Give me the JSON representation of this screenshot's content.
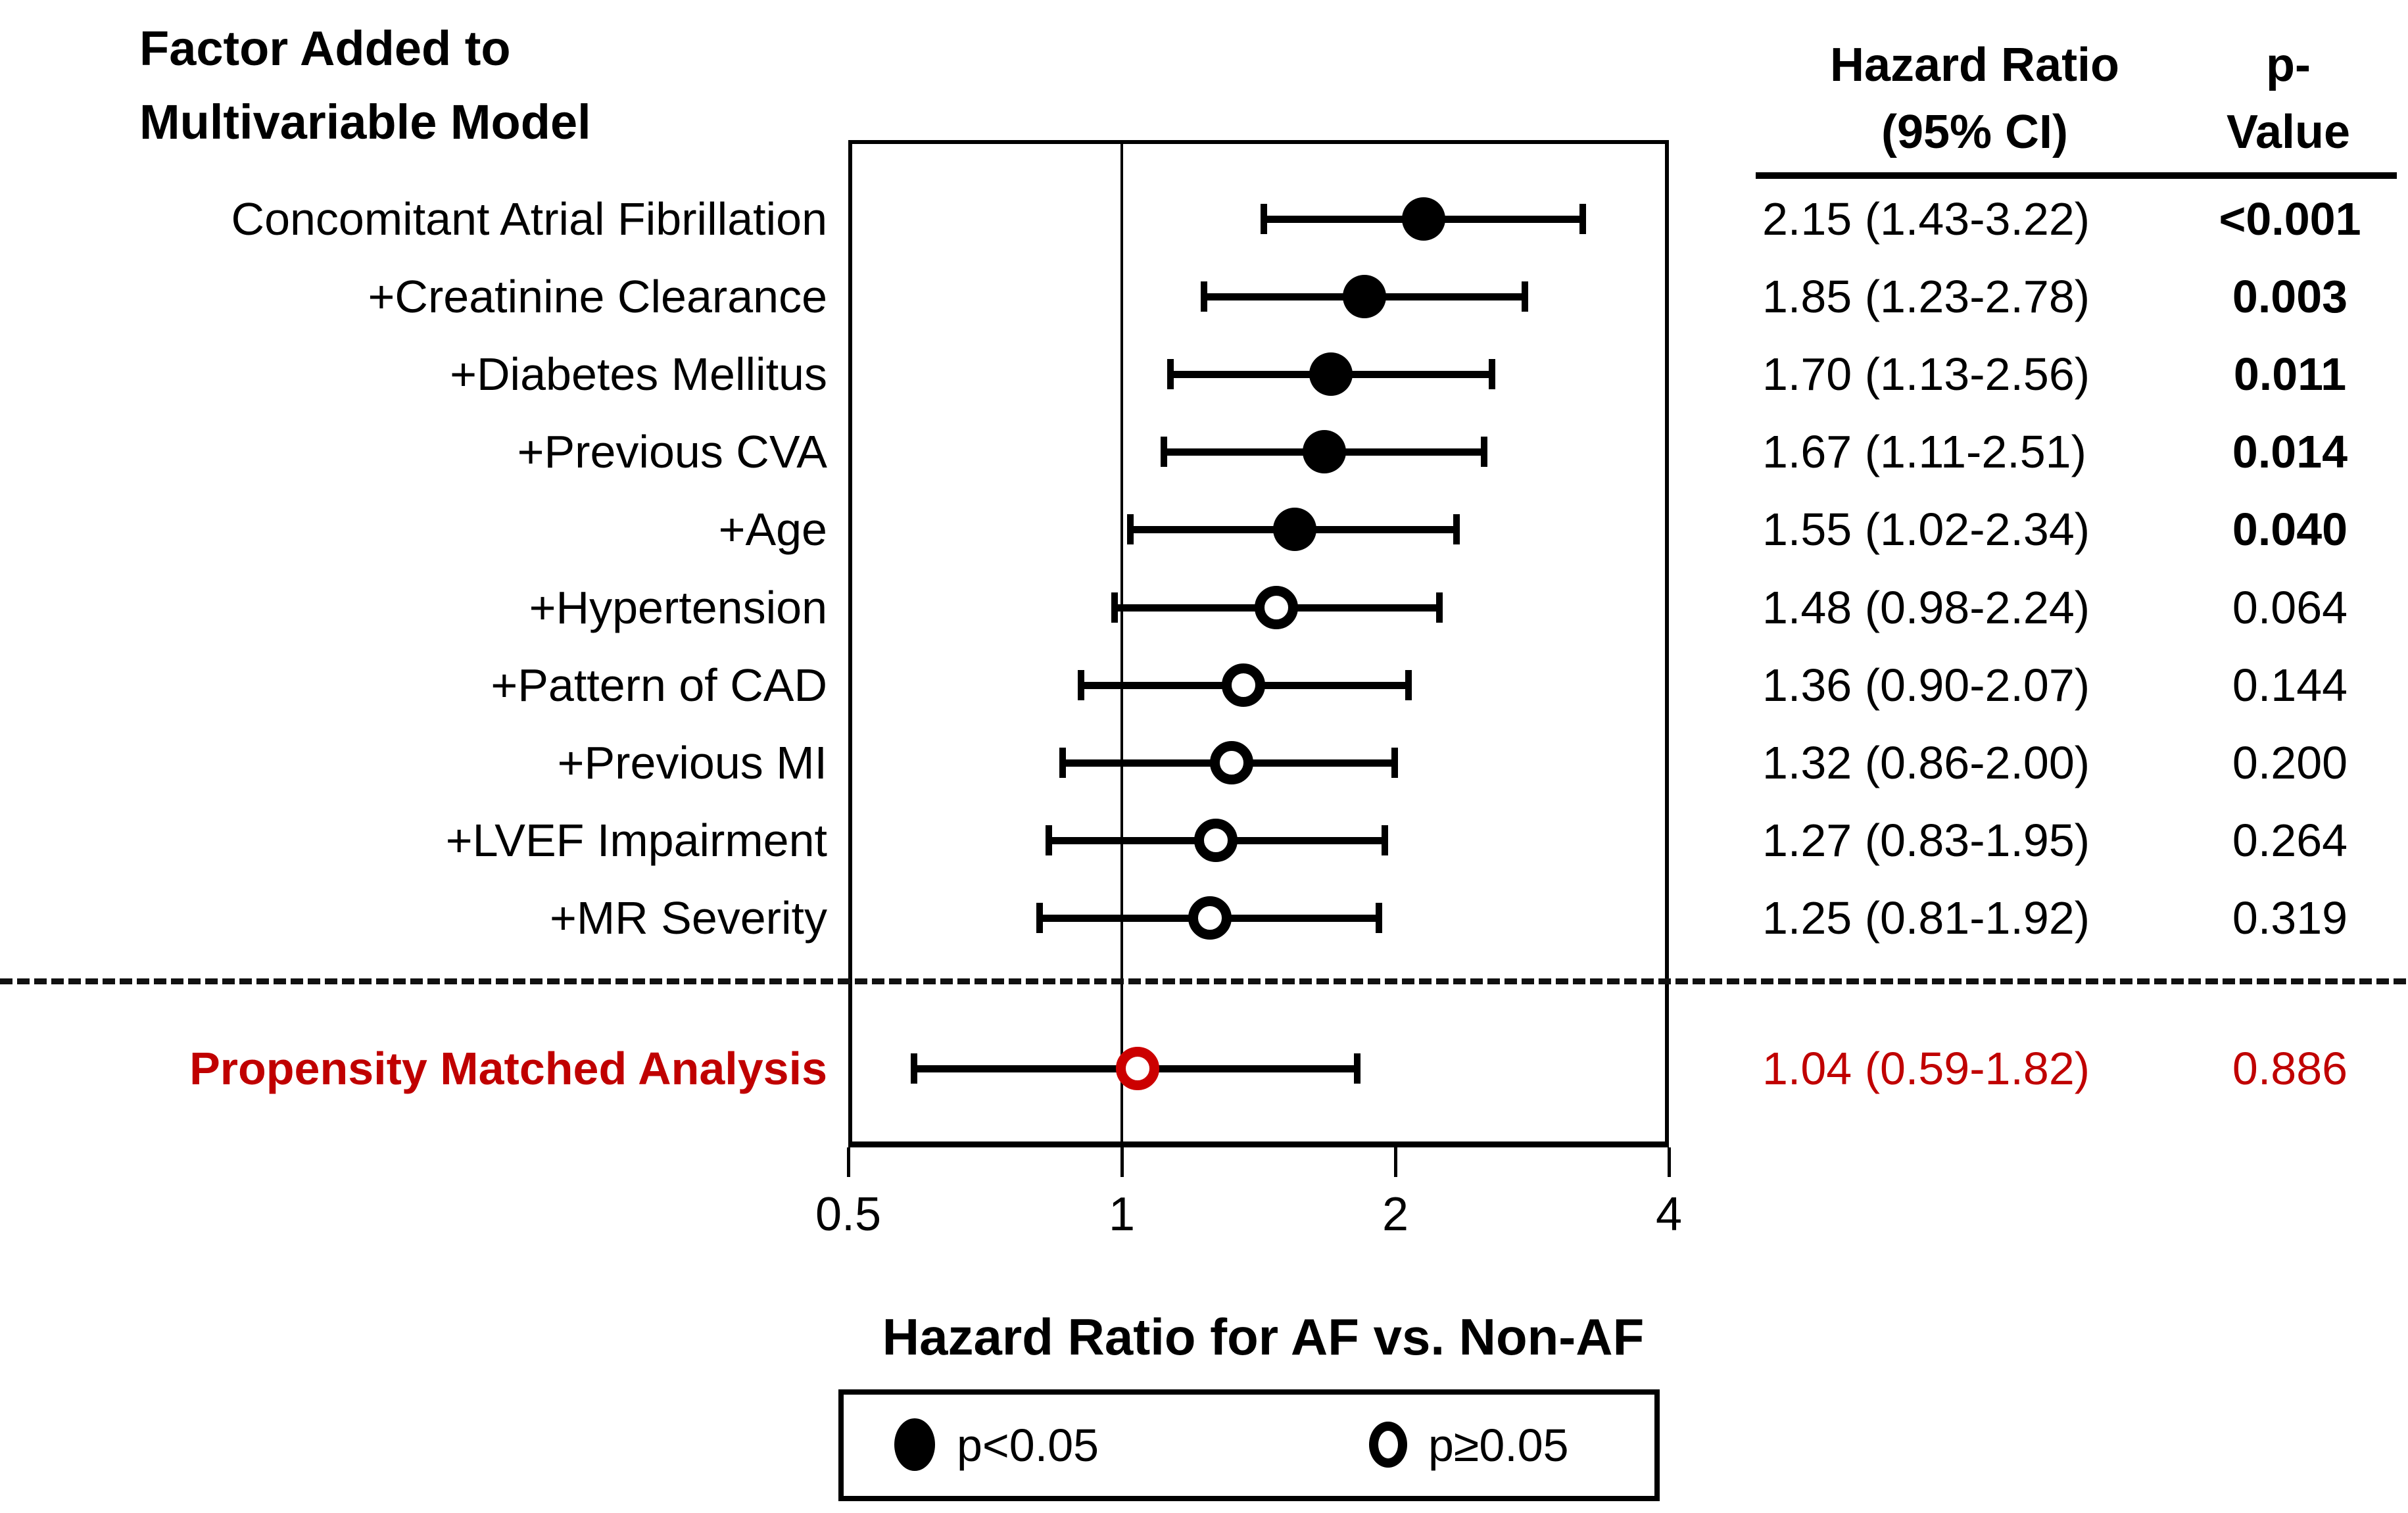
{
  "figure": {
    "row_column_header_line1": "Factor Added to",
    "row_column_header_line2": "Multivariable Model"
  },
  "chart_data": {
    "type": "forest",
    "title": "Factor Added to Multivariable Model",
    "xlabel": "Hazard Ratio for AF vs. Non-AF",
    "x_scale": "log2",
    "x_ticks": [
      0.5,
      1,
      2,
      4
    ],
    "x_tick_labels": [
      "0.5",
      "1",
      "2",
      "4"
    ],
    "xlim": [
      0.5,
      4
    ],
    "reference_line": 1,
    "headers": {
      "hazard_line1": "Hazard Ratio",
      "hazard_line2": "(95% CI)",
      "p_line1": "p-",
      "p_line2": "Value"
    },
    "legend": {
      "filled_label": "p<0.05",
      "open_label": "p≥0.05"
    },
    "colors": {
      "black": "#000000",
      "red_text": "#C00000",
      "red_marker": "#CC0000"
    },
    "rows": [
      {
        "label": "Concomitant Atrial Fibrillation",
        "hr": 2.15,
        "lo": 1.43,
        "hi": 3.22,
        "hr_ci": "2.15 (1.43-3.22)",
        "p": "<0.001",
        "significant": true,
        "red": false
      },
      {
        "label": "+Creatinine Clearance",
        "hr": 1.85,
        "lo": 1.23,
        "hi": 2.78,
        "hr_ci": "1.85 (1.23-2.78)",
        "p": "0.003",
        "significant": true,
        "red": false
      },
      {
        "label": "+Diabetes Mellitus",
        "hr": 1.7,
        "lo": 1.13,
        "hi": 2.56,
        "hr_ci": "1.70 (1.13-2.56)",
        "p": "0.011",
        "significant": true,
        "red": false
      },
      {
        "label": "+Previous CVA",
        "hr": 1.67,
        "lo": 1.11,
        "hi": 2.51,
        "hr_ci": "1.67 (1.11-2.51)",
        "p": "0.014",
        "significant": true,
        "red": false
      },
      {
        "label": "+Age",
        "hr": 1.55,
        "lo": 1.02,
        "hi": 2.34,
        "hr_ci": "1.55 (1.02-2.34)",
        "p": "0.040",
        "significant": true,
        "red": false
      },
      {
        "label": "+Hypertension",
        "hr": 1.48,
        "lo": 0.98,
        "hi": 2.24,
        "hr_ci": "1.48 (0.98-2.24)",
        "p": "0.064",
        "significant": false,
        "red": false
      },
      {
        "label": "+Pattern of CAD",
        "hr": 1.36,
        "lo": 0.9,
        "hi": 2.07,
        "hr_ci": "1.36 (0.90-2.07)",
        "p": "0.144",
        "significant": false,
        "red": false
      },
      {
        "label": "+Previous MI",
        "hr": 1.32,
        "lo": 0.86,
        "hi": 2.0,
        "hr_ci": "1.32 (0.86-2.00)",
        "p": "0.200",
        "significant": false,
        "red": false
      },
      {
        "label": "+LVEF Impairment",
        "hr": 1.27,
        "lo": 0.83,
        "hi": 1.95,
        "hr_ci": "1.27 (0.83-1.95)",
        "p": "0.264",
        "significant": false,
        "red": false
      },
      {
        "label": "+MR Severity",
        "hr": 1.25,
        "lo": 0.81,
        "hi": 1.92,
        "hr_ci": "1.25 (0.81-1.92)",
        "p": "0.319",
        "significant": false,
        "red": false
      },
      {
        "label": "Propensity Matched Analysis",
        "hr": 1.04,
        "lo": 0.59,
        "hi": 1.82,
        "hr_ci": "1.04 (0.59-1.82)",
        "p": "0.886",
        "significant": false,
        "red": true
      }
    ]
  }
}
